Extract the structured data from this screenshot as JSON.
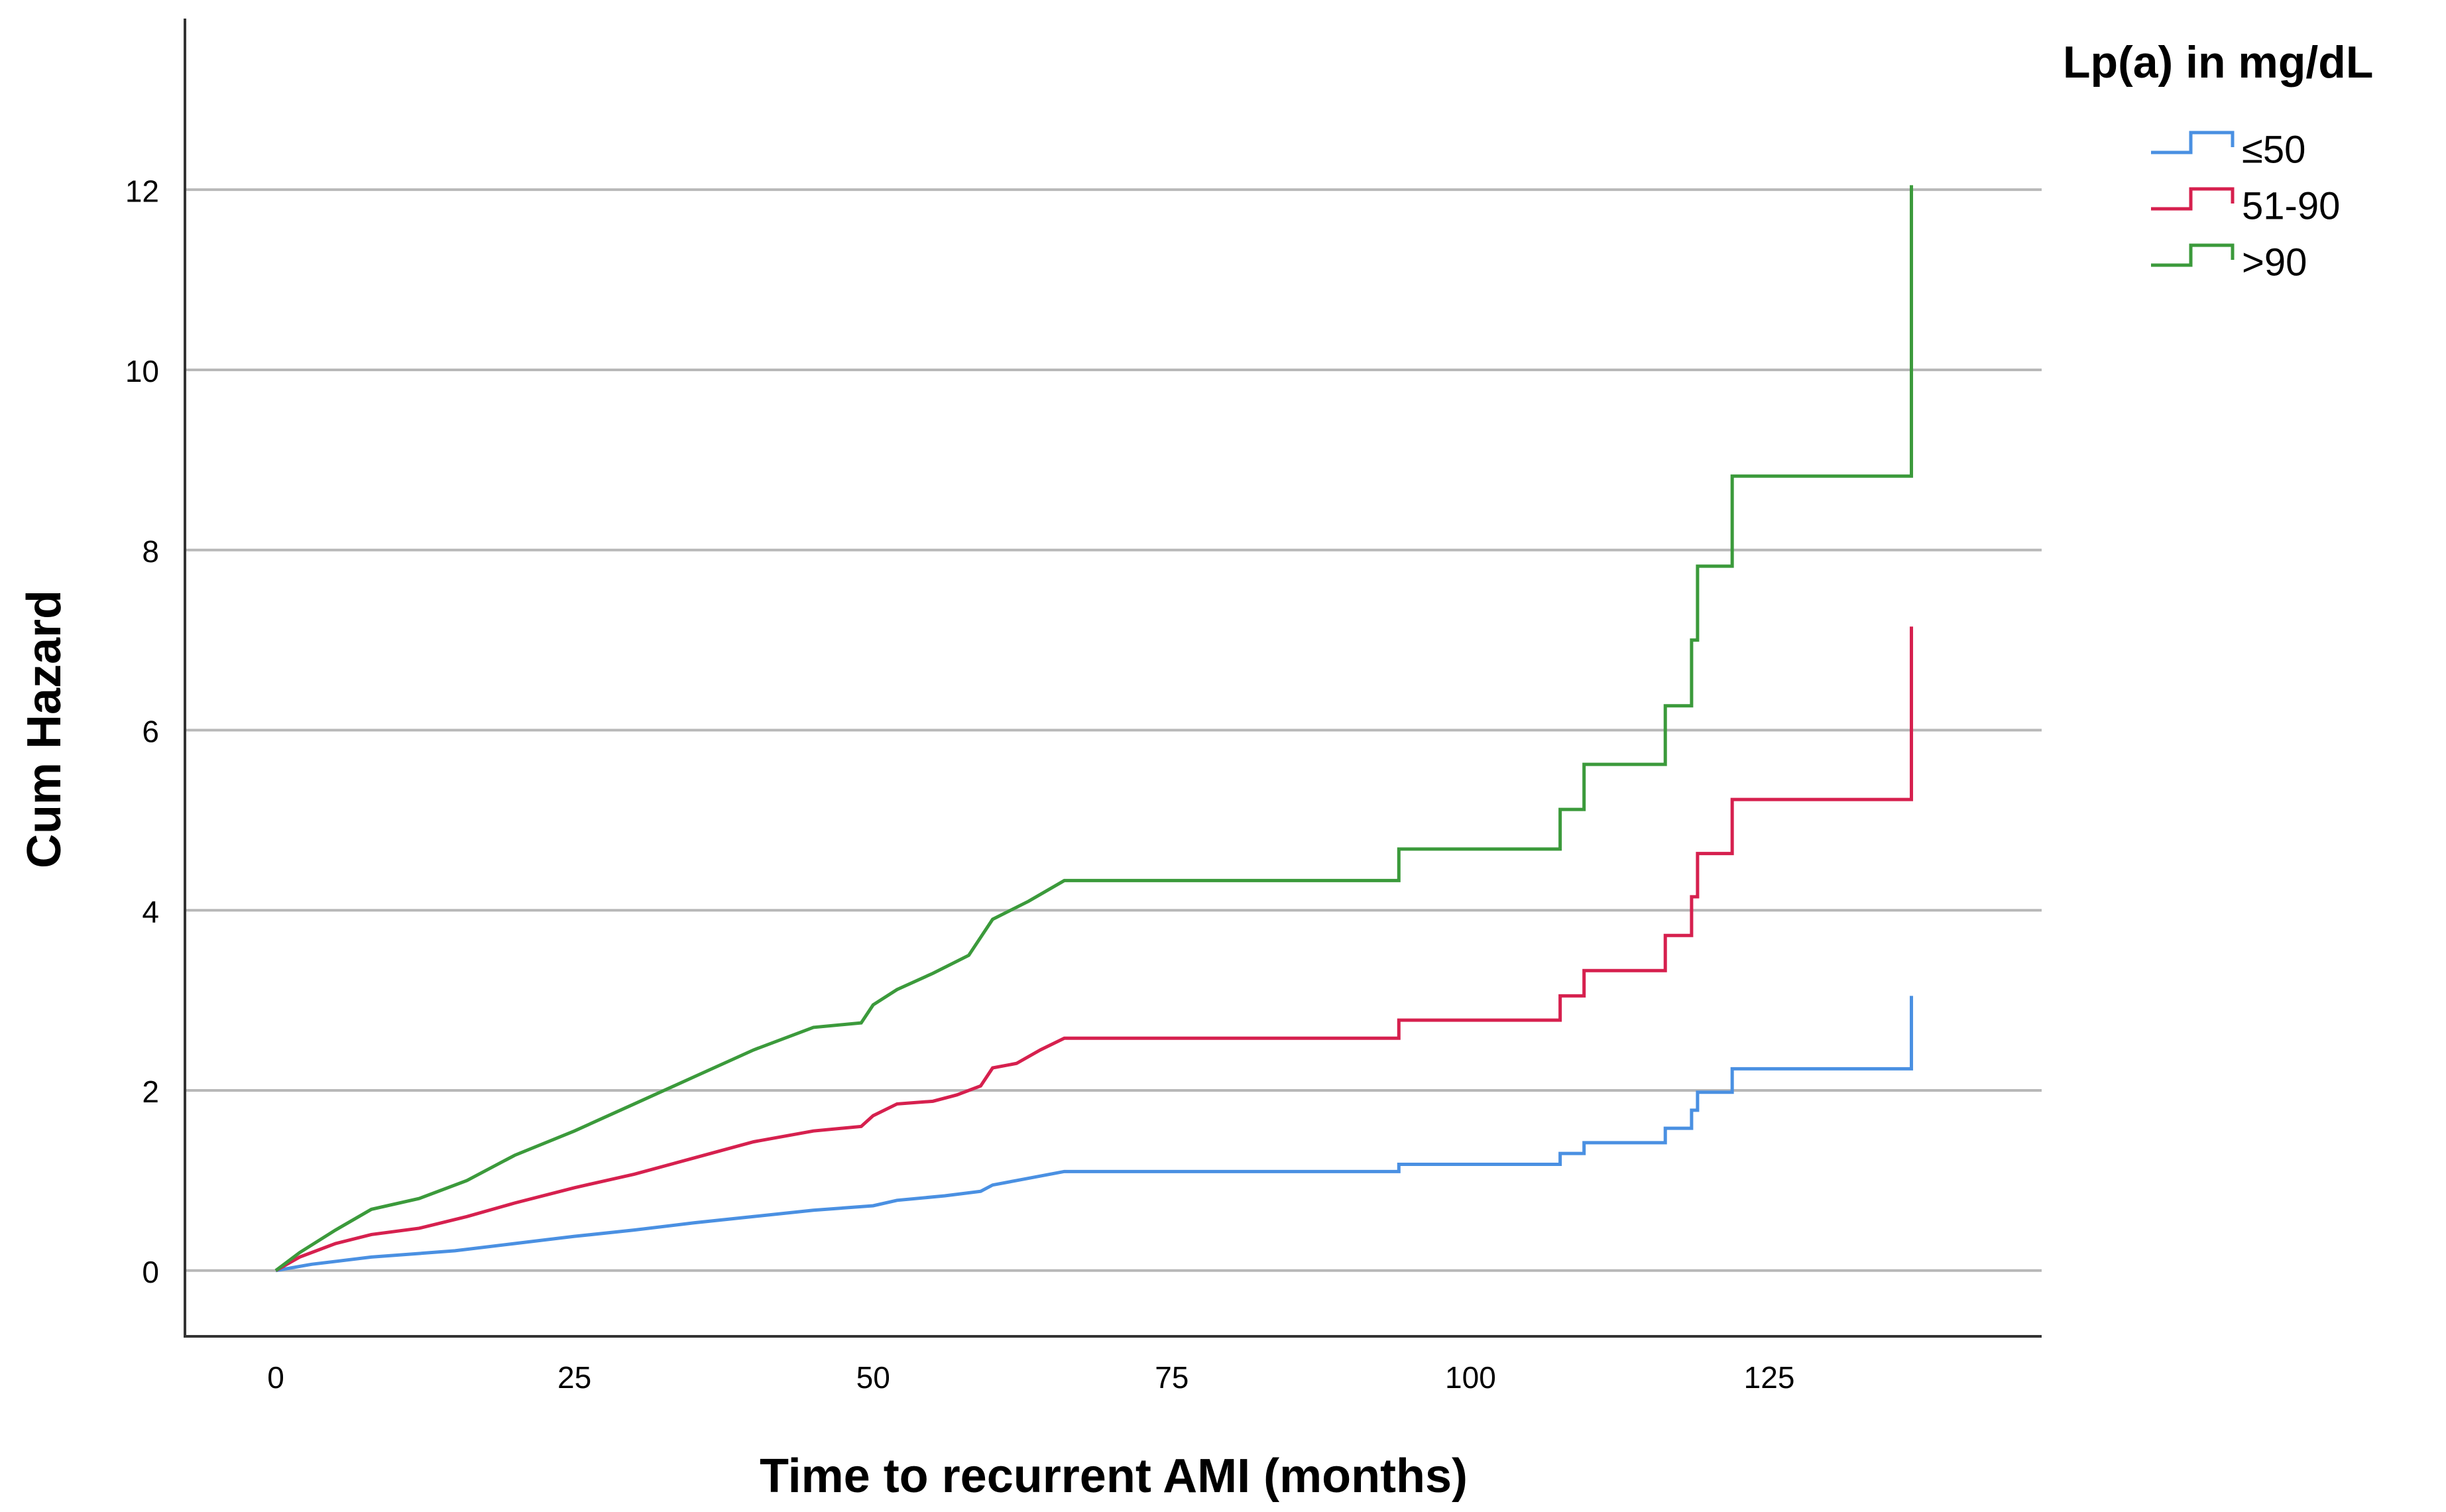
{
  "chart_data": {
    "type": "line",
    "step": true,
    "x_label": "Time to recurrent AMI (months)",
    "y_label": "Cum Hazard",
    "legend_title": "Lp(a) in mg/dL",
    "legend": "right",
    "grid": true,
    "xlim": [
      -7.6,
      147.8
    ],
    "xticks": [
      0,
      25,
      50,
      75,
      100,
      125
    ],
    "ylim": [
      -0.73,
      13.9
    ],
    "yticks": [
      0,
      2,
      4,
      6,
      8,
      10,
      12
    ],
    "series": [
      {
        "name": "≤50",
        "color": "#4a90e2",
        "x": [
          0,
          3,
          8,
          15,
          20,
          25,
          30,
          35,
          40,
          45,
          50,
          52,
          56,
          59,
          60,
          62,
          66,
          94,
          94,
          107.5,
          107.5,
          109.5,
          109.5,
          116.3,
          116.3,
          118.5,
          118.5,
          119,
          119,
          121.9,
          121.9,
          136.9,
          136.9
        ],
        "values": [
          0,
          0.07,
          0.15,
          0.22,
          0.3,
          0.38,
          0.45,
          0.53,
          0.6,
          0.67,
          0.72,
          0.78,
          0.83,
          0.88,
          0.95,
          1.0,
          1.1,
          1.1,
          1.18,
          1.18,
          1.3,
          1.3,
          1.42,
          1.42,
          1.58,
          1.58,
          1.78,
          1.78,
          1.98,
          1.98,
          2.24,
          2.24,
          3.05
        ]
      },
      {
        "name": "51-90",
        "color": "#d6204e",
        "x": [
          0,
          2,
          5,
          8,
          12,
          16,
          20,
          25,
          30,
          35,
          40,
          45,
          49,
          50,
          52,
          55,
          57,
          59,
          60,
          62,
          64,
          66,
          94,
          94,
          107.5,
          107.5,
          109.5,
          109.5,
          116.3,
          116.3,
          118.5,
          118.5,
          119,
          119,
          121.9,
          121.9,
          136.9,
          136.9
        ],
        "values": [
          0,
          0.15,
          0.3,
          0.4,
          0.47,
          0.6,
          0.75,
          0.92,
          1.07,
          1.25,
          1.43,
          1.55,
          1.6,
          1.72,
          1.85,
          1.88,
          1.95,
          2.05,
          2.25,
          2.3,
          2.45,
          2.58,
          2.58,
          2.78,
          2.78,
          3.05,
          3.05,
          3.33,
          3.33,
          3.72,
          3.72,
          4.15,
          4.15,
          4.63,
          4.63,
          5.23,
          5.23,
          7.15
        ]
      },
      {
        "name": ">90",
        "color": "#3b9a3b",
        "x": [
          0,
          2,
          5,
          8,
          12,
          16,
          20,
          25,
          30,
          35,
          40,
          45,
          49,
          50,
          52,
          55,
          58,
          60,
          63,
          66,
          94,
          94,
          107.5,
          107.5,
          109.5,
          109.5,
          116.3,
          116.3,
          118.5,
          118.5,
          119,
          119,
          121.9,
          121.9,
          136.9,
          136.9
        ],
        "values": [
          0,
          0.2,
          0.45,
          0.68,
          0.8,
          1.0,
          1.28,
          1.55,
          1.85,
          2.15,
          2.45,
          2.7,
          2.75,
          2.95,
          3.12,
          3.3,
          3.5,
          3.9,
          4.1,
          4.33,
          4.33,
          4.68,
          4.68,
          5.12,
          5.12,
          5.62,
          5.62,
          6.27,
          6.27,
          7.0,
          7.0,
          7.82,
          7.82,
          8.82,
          8.82,
          12.05
        ]
      }
    ]
  }
}
